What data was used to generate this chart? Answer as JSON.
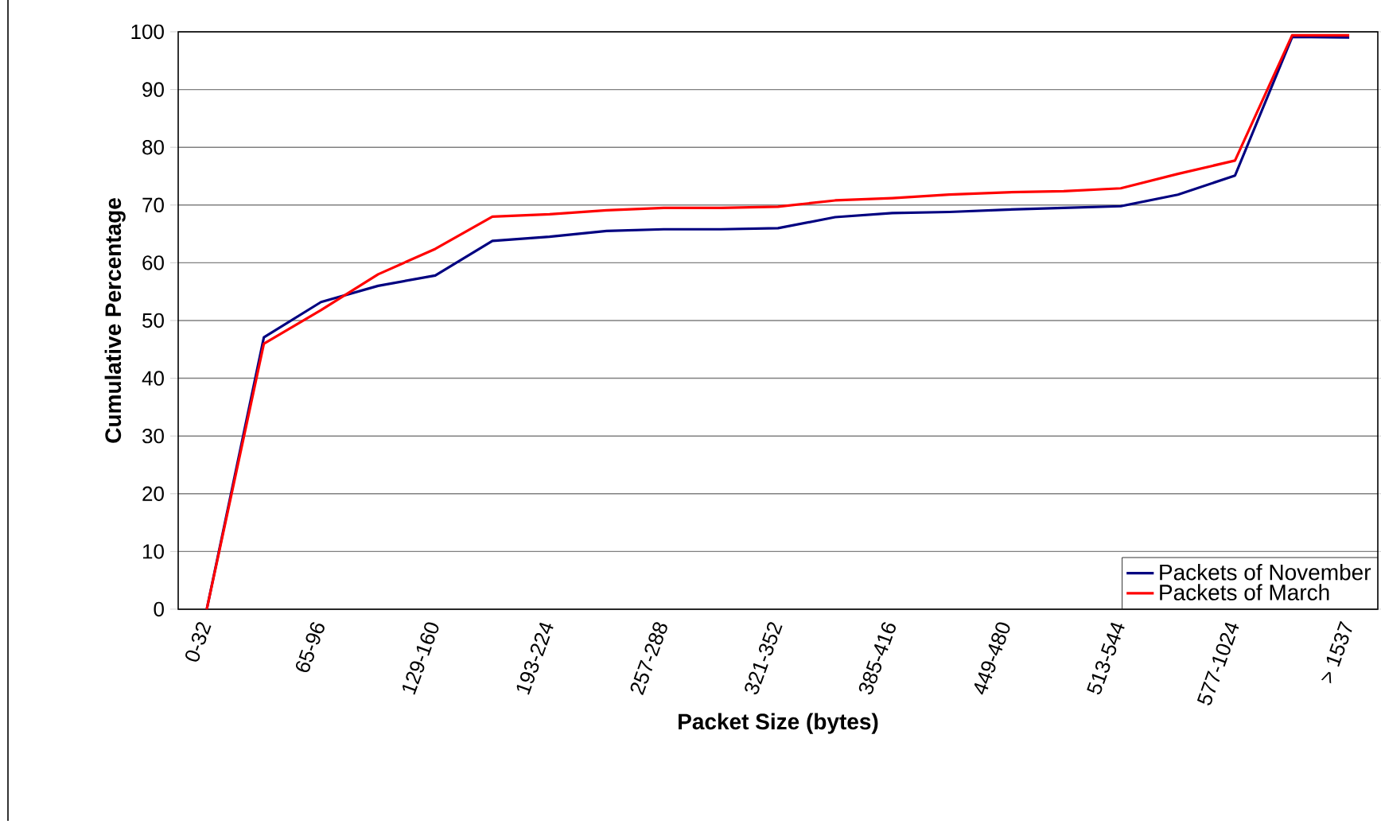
{
  "chart_data": {
    "type": "line",
    "xlabel": "Packet Size (bytes)",
    "ylabel": "Cumulative Percentage",
    "categories": [
      "0-32",
      null,
      "65-96",
      null,
      "129-160",
      null,
      "193-224",
      null,
      "257-288",
      null,
      "321-352",
      null,
      "385-416",
      null,
      "449-480",
      null,
      "513-544",
      null,
      "577-1024",
      null,
      "> 1537"
    ],
    "series": [
      {
        "name": "Packets of November",
        "color": "#000080",
        "values": [
          0,
          47.1,
          53.2,
          56.0,
          57.8,
          63.8,
          64.5,
          65.5,
          65.8,
          65.8,
          66.0,
          67.9,
          68.6,
          68.8,
          69.2,
          69.5,
          69.8,
          71.8,
          75.1,
          99.1,
          99.0
        ]
      },
      {
        "name": "Packets of March",
        "color": "#ff0000",
        "values": [
          0,
          46.0,
          51.8,
          58.0,
          62.4,
          68.0,
          68.4,
          69.1,
          69.5,
          69.5,
          69.7,
          70.8,
          71.2,
          71.8,
          72.2,
          72.4,
          72.9,
          75.4,
          77.7,
          99.4,
          99.4
        ]
      }
    ],
    "ylim": [
      0,
      100
    ],
    "yticks": [
      0,
      10,
      20,
      30,
      40,
      50,
      60,
      70,
      80,
      90,
      100
    ],
    "grid": "y",
    "legend": "bottom right",
    "marker": "none",
    "line_style": "solid"
  }
}
